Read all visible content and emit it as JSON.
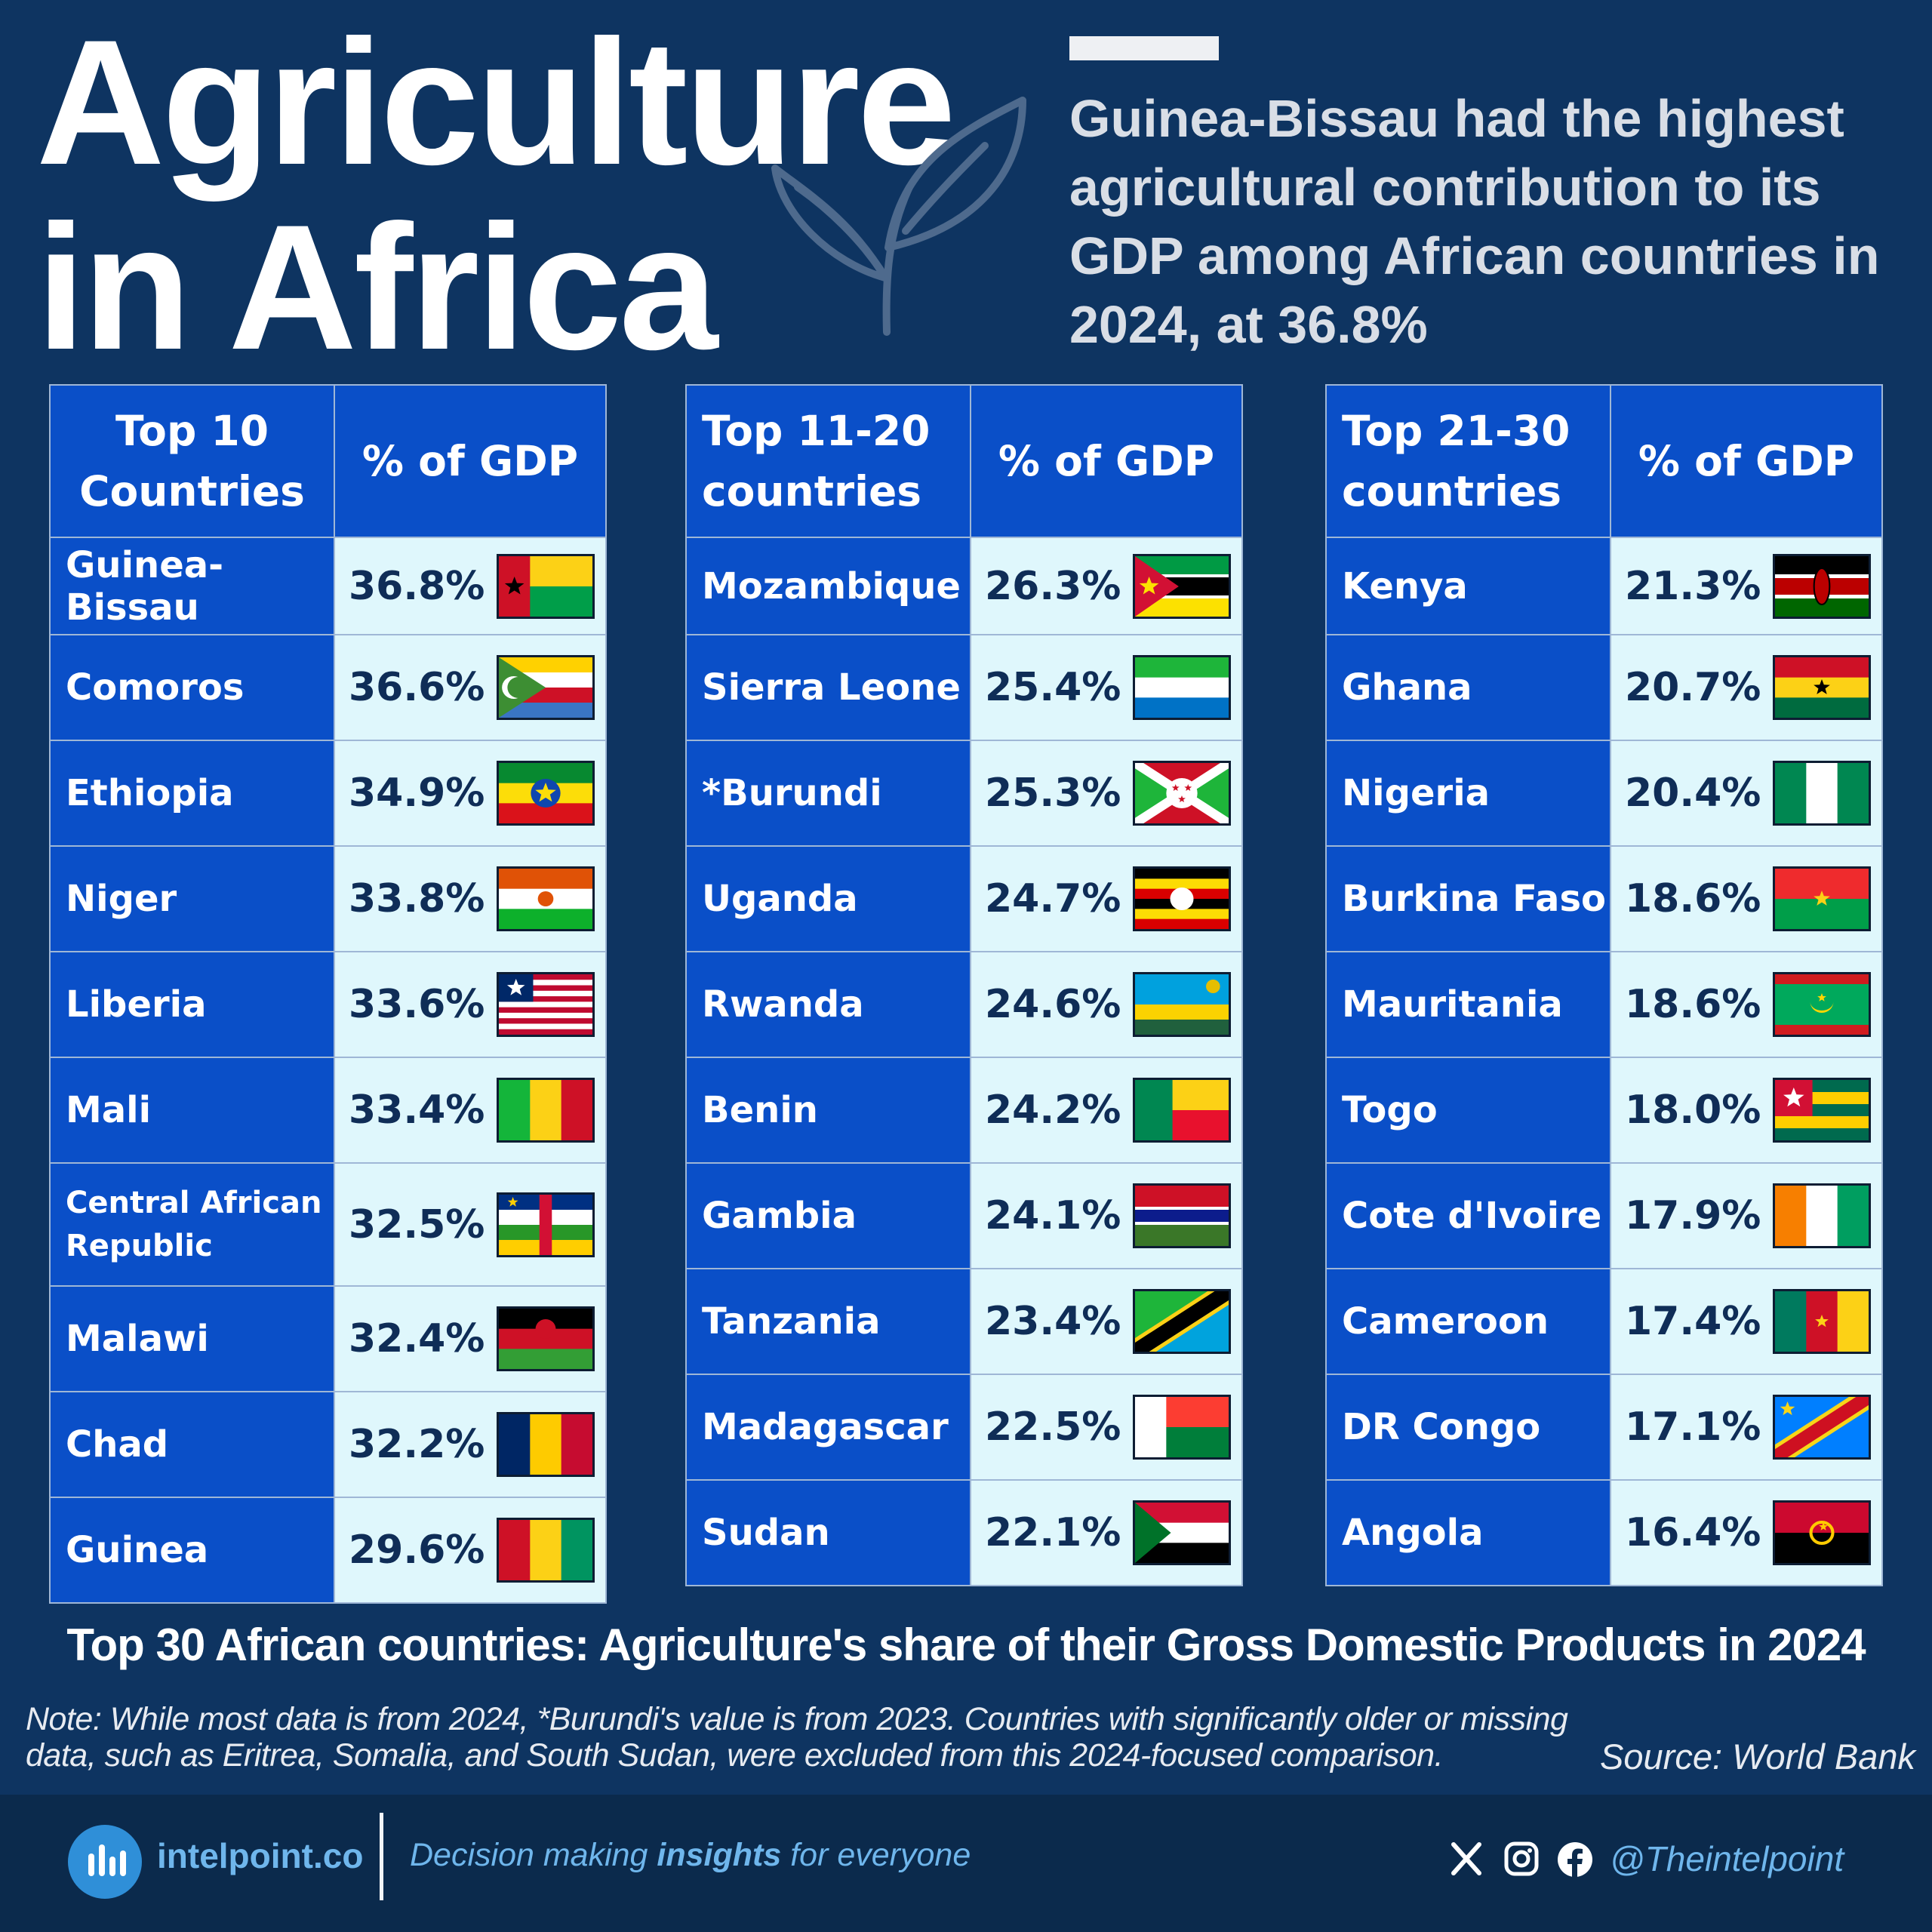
{
  "title": {
    "line1": "Agriculture",
    "line2": "in Africa"
  },
  "headline": "Guinea-Bissau had the highest agricultural contribution to its GDP among African countries in 2024, at 36.8%",
  "chart_data": {
    "type": "table",
    "caption": "Top 30 African countries: Agriculture's share of their Gross Domestic Products in 2024",
    "tables": [
      {
        "header_country": "Top 10 Countries",
        "header_value": "% of GDP",
        "rows": [
          {
            "country": "Guinea-Bissau",
            "value": "36.8%",
            "flag": "guinea-bissau"
          },
          {
            "country": "Comoros",
            "value": "36.6%",
            "flag": "comoros"
          },
          {
            "country": "Ethiopia",
            "value": "34.9%",
            "flag": "ethiopia"
          },
          {
            "country": "Niger",
            "value": "33.8%",
            "flag": "niger"
          },
          {
            "country": "Liberia",
            "value": "33.6%",
            "flag": "liberia"
          },
          {
            "country": "Mali",
            "value": "33.4%",
            "flag": "mali"
          },
          {
            "country": "Central African Republic",
            "value": "32.5%",
            "flag": "central-african-republic"
          },
          {
            "country": "Malawi",
            "value": "32.4%",
            "flag": "malawi"
          },
          {
            "country": "Chad",
            "value": "32.2%",
            "flag": "chad"
          },
          {
            "country": "Guinea",
            "value": "29.6%",
            "flag": "guinea"
          }
        ]
      },
      {
        "header_country": "Top 11-20 countries",
        "header_value": "% of GDP",
        "rows": [
          {
            "country": "Mozambique",
            "value": "26.3%",
            "flag": "mozambique"
          },
          {
            "country": "Sierra Leone",
            "value": "25.4%",
            "flag": "sierra-leone"
          },
          {
            "country": "*Burundi",
            "value": "25.3%",
            "flag": "burundi"
          },
          {
            "country": "Uganda",
            "value": "24.7%",
            "flag": "uganda"
          },
          {
            "country": "Rwanda",
            "value": "24.6%",
            "flag": "rwanda"
          },
          {
            "country": "Benin",
            "value": "24.2%",
            "flag": "benin"
          },
          {
            "country": "Gambia",
            "value": "24.1%",
            "flag": "gambia"
          },
          {
            "country": "Tanzania",
            "value": "23.4%",
            "flag": "tanzania"
          },
          {
            "country": "Madagascar",
            "value": "22.5%",
            "flag": "madagascar"
          },
          {
            "country": "Sudan",
            "value": "22.1%",
            "flag": "sudan"
          }
        ]
      },
      {
        "header_country": "Top 21-30 countries",
        "header_value": "% of GDP",
        "rows": [
          {
            "country": "Kenya",
            "value": "21.3%",
            "flag": "kenya"
          },
          {
            "country": "Ghana",
            "value": "20.7%",
            "flag": "ghana"
          },
          {
            "country": "Nigeria",
            "value": "20.4%",
            "flag": "nigeria"
          },
          {
            "country": "Burkina Faso",
            "value": "18.6%",
            "flag": "burkina-faso"
          },
          {
            "country": "Mauritania",
            "value": "18.6%",
            "flag": "mauritania"
          },
          {
            "country": "Togo",
            "value": "18.0%",
            "flag": "togo"
          },
          {
            "country": "Cote d'Ivoire",
            "value": "17.9%",
            "flag": "cote-divoire"
          },
          {
            "country": "Cameroon",
            "value": "17.4%",
            "flag": "cameroon"
          },
          {
            "country": "DR Congo",
            "value": "17.1%",
            "flag": "dr-congo"
          },
          {
            "country": "Angola",
            "value": "16.4%",
            "flag": "angola"
          }
        ]
      }
    ]
  },
  "note": "Note: While most data is from 2024, *Burundi's value is from 2023. Countries with significantly older or missing data, such as Eritrea, Somalia, and South Sudan, were excluded from this 2024-focused comparison.",
  "source": "Source: World Bank",
  "footer": {
    "brand": "intelpoint.co",
    "tagline_pre": "Decision making ",
    "tagline_bold": "insights",
    "tagline_post": " for everyone",
    "handle": "@Theintelpoint",
    "social_icons": [
      "x-icon",
      "instagram-icon",
      "facebook-icon"
    ]
  },
  "colors": {
    "background": "#0e3461",
    "header_cell": "#0a4fc8",
    "value_cell": "#dff7fc",
    "footer": "#0b2a4c",
    "accent": "#6fb6ec"
  }
}
